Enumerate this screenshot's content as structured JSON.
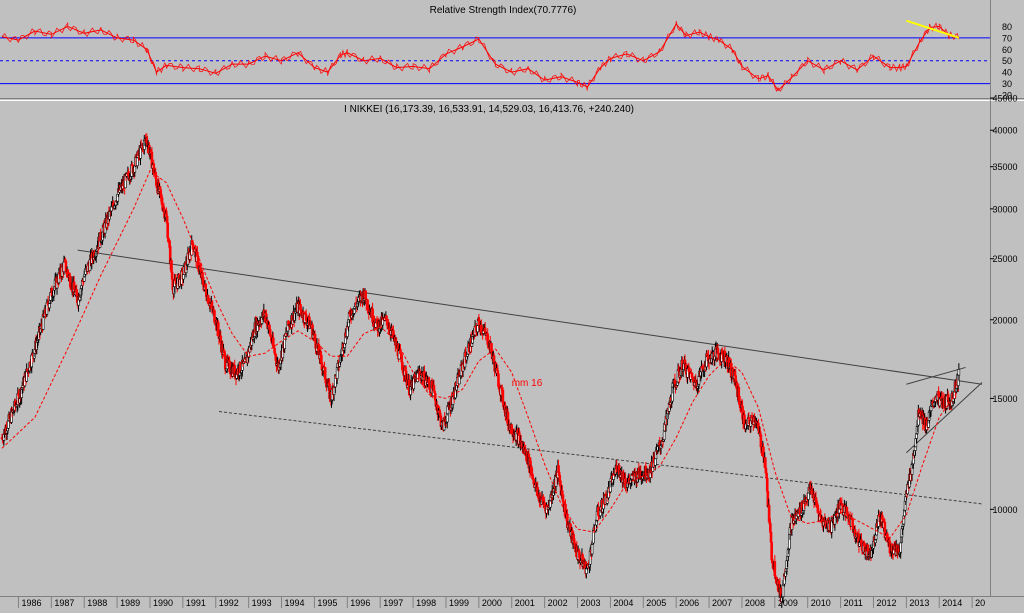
{
  "chart_data": [
    {
      "panel": "rsi",
      "type": "line",
      "title": "Relative Strength Index(70.7776)",
      "ylim": [
        20,
        90
      ],
      "y_ticks": [
        20,
        30,
        40,
        50,
        60,
        70,
        80
      ],
      "reference_lines": [
        70,
        30
      ],
      "midline": 50,
      "colors": {
        "line": "#ff0000",
        "reference": "#0000ff",
        "midline": "#0000ff",
        "trend": "#ffff00"
      },
      "series": [
        {
          "x": [
            1985.5,
            1986.0,
            1986.5,
            1987.0,
            1987.5,
            1988.0,
            1988.5,
            1989.0,
            1989.5,
            1989.9,
            1990.2,
            1990.5,
            1991.0,
            1991.5,
            1992.0,
            1992.5,
            1993.0,
            1993.5,
            1994.0,
            1994.5,
            1995.0,
            1995.4,
            1995.8,
            1996.0,
            1996.5,
            1997.0,
            1997.5,
            1998.0,
            1998.5,
            1999.0,
            1999.5,
            2000.0,
            2000.5,
            2001.0,
            2001.5,
            2002.0,
            2002.5,
            2003.0,
            2003.3,
            2003.7,
            2004.0,
            2004.5,
            2005.0,
            2005.5,
            2006.0,
            2006.3,
            2006.7,
            2007.0,
            2007.3,
            2007.7,
            2008.0,
            2008.5,
            2008.8,
            2009.1,
            2009.5,
            2010.0,
            2010.5,
            2011.0,
            2011.5,
            2012.0,
            2012.5,
            2012.8,
            2013.0,
            2013.4,
            2013.7,
            2014.0,
            2014.3,
            2014.6
          ],
          "values": [
            71,
            68,
            76,
            73,
            80,
            74,
            77,
            70,
            68,
            60,
            40,
            46,
            44,
            43,
            39,
            47,
            47,
            54,
            50,
            57,
            44,
            40,
            55,
            57,
            50,
            52,
            44,
            45,
            43,
            56,
            62,
            69,
            47,
            40,
            43,
            33,
            36,
            31,
            27,
            44,
            52,
            56,
            50,
            58,
            82,
            72,
            75,
            71,
            68,
            60,
            45,
            34,
            37,
            24,
            35,
            50,
            42,
            50,
            42,
            54,
            44,
            44,
            45,
            66,
            79,
            80,
            72,
            71
          ]
        }
      ],
      "trendline": {
        "x": [
          2013.0,
          2014.6
        ],
        "y": [
          85,
          70
        ]
      }
    },
    {
      "panel": "price",
      "type": "candlestick",
      "title": "I NIKKEI (16,173.39, 16,533.91, 14,529.03, 16,413.76, +240.240)",
      "y_scale": "log",
      "ylim": [
        7500,
        45000
      ],
      "y_ticks": [
        10000,
        15000,
        20000,
        25000,
        30000,
        35000,
        40000,
        45000
      ],
      "x_ticks": [
        "1986",
        "1987",
        "1988",
        "1989",
        "1990",
        "1991",
        "1992",
        "1993",
        "1994",
        "1995",
        "1996",
        "1997",
        "1998",
        "1999",
        "2000",
        "2001",
        "2002",
        "2003",
        "2004",
        "2005",
        "2006",
        "2007",
        "2008",
        "2009",
        "2010",
        "2011",
        "2012",
        "2013",
        "2014",
        "20"
      ],
      "x_range": [
        1985.5,
        2015.3
      ],
      "colors": {
        "up": "#000000",
        "down": "#ff0000",
        "ma": "#ff0000"
      },
      "close_path": {
        "x": [
          1985.5,
          1986.0,
          1986.5,
          1987.0,
          1987.4,
          1987.8,
          1988.0,
          1988.5,
          1989.0,
          1989.5,
          1989.9,
          1990.2,
          1990.5,
          1990.7,
          1991.0,
          1991.3,
          1991.6,
          1992.0,
          1992.3,
          1992.6,
          1992.9,
          1993.2,
          1993.5,
          1993.9,
          1994.2,
          1994.5,
          1994.9,
          1995.3,
          1995.5,
          1995.8,
          1996.1,
          1996.5,
          1996.9,
          1997.2,
          1997.6,
          1997.9,
          1998.2,
          1998.6,
          1998.9,
          1999.2,
          1999.6,
          2000.0,
          2000.3,
          2000.6,
          2000.9,
          2001.2,
          2001.5,
          2001.8,
          2002.1,
          2002.4,
          2002.7,
          2003.0,
          2003.3,
          2003.6,
          2003.9,
          2004.2,
          2004.5,
          2004.9,
          2005.2,
          2005.6,
          2005.9,
          2006.2,
          2006.6,
          2006.9,
          2007.2,
          2007.5,
          2007.8,
          2008.1,
          2008.4,
          2008.7,
          2008.9,
          2009.2,
          2009.5,
          2009.8,
          2010.1,
          2010.4,
          2010.7,
          2011.0,
          2011.3,
          2011.6,
          2011.9,
          2012.2,
          2012.5,
          2012.8,
          2013.0,
          2013.2,
          2013.4,
          2013.6,
          2013.9,
          2014.1,
          2014.4,
          2014.6
        ],
        "y": [
          13000,
          15000,
          18000,
          22000,
          24500,
          21500,
          23500,
          27000,
          31500,
          35000,
          38900,
          33000,
          29000,
          22500,
          23500,
          26500,
          23000,
          20000,
          17000,
          16500,
          17000,
          19500,
          20500,
          16800,
          19500,
          21000,
          19500,
          16500,
          15000,
          17500,
          20500,
          22000,
          19500,
          20000,
          17500,
          15500,
          16500,
          15500,
          13500,
          15000,
          17500,
          19800,
          18500,
          16000,
          13700,
          13000,
          12000,
          10500,
          10000,
          11500,
          9500,
          8500,
          8000,
          9800,
          10500,
          11700,
          11000,
          11400,
          11500,
          13000,
          15500,
          17000,
          15800,
          17200,
          17700,
          17500,
          16000,
          13500,
          14000,
          12000,
          8500,
          7200,
          9500,
          10000,
          10800,
          9600,
          9400,
          10200,
          9600,
          8800,
          8500,
          9800,
          8700,
          8600,
          10500,
          12000,
          14500,
          13500,
          15200,
          14700,
          15000,
          16400
        ]
      },
      "moving_average": {
        "label": "mm 16",
        "x": [
          1985.5,
          1986.5,
          1987.5,
          1988.5,
          1989.5,
          1990.0,
          1990.5,
          1991.0,
          1991.5,
          1992.0,
          1992.5,
          1993.0,
          1993.5,
          1994.0,
          1994.5,
          1995.0,
          1995.5,
          1996.0,
          1996.5,
          1997.0,
          1997.5,
          1998.0,
          1998.5,
          1999.0,
          1999.5,
          2000.0,
          2000.5,
          2001.0,
          2001.5,
          2002.0,
          2002.5,
          2003.0,
          2003.5,
          2004.0,
          2004.5,
          2005.0,
          2005.5,
          2006.0,
          2006.5,
          2007.0,
          2007.5,
          2008.0,
          2008.5,
          2009.0,
          2009.5,
          2010.0,
          2010.5,
          2011.0,
          2011.5,
          2012.0,
          2012.5,
          2013.0,
          2013.5,
          2014.0,
          2014.6
        ],
        "y": [
          12500,
          14000,
          18000,
          23500,
          30000,
          34500,
          33000,
          29000,
          25000,
          21500,
          19000,
          17500,
          17700,
          18500,
          19200,
          18500,
          17500,
          17500,
          19000,
          19500,
          18500,
          16500,
          15200,
          15000,
          15500,
          17200,
          18000,
          16500,
          14000,
          11800,
          10200,
          9300,
          9200,
          10000,
          11000,
          11300,
          11700,
          13000,
          14800,
          16300,
          17300,
          16500,
          14500,
          11500,
          9700,
          9500,
          9600,
          9900,
          9600,
          9300,
          9000,
          9800,
          11800,
          14000,
          15500
        ]
      },
      "trend_lines": [
        {
          "x": [
            1987.8,
            2015.3
          ],
          "y": [
            25800,
            15800
          ],
          "style": "solid"
        },
        {
          "x": [
            1992.1,
            2015.3
          ],
          "y": [
            14300,
            10200
          ],
          "style": "dashed"
        },
        {
          "x": [
            2013.0,
            2014.8
          ],
          "y": [
            15800,
            16800
          ],
          "style": "solid"
        },
        {
          "x": [
            2013.0,
            2015.3
          ],
          "y": [
            12300,
            15900
          ],
          "style": "solid"
        }
      ]
    }
  ]
}
